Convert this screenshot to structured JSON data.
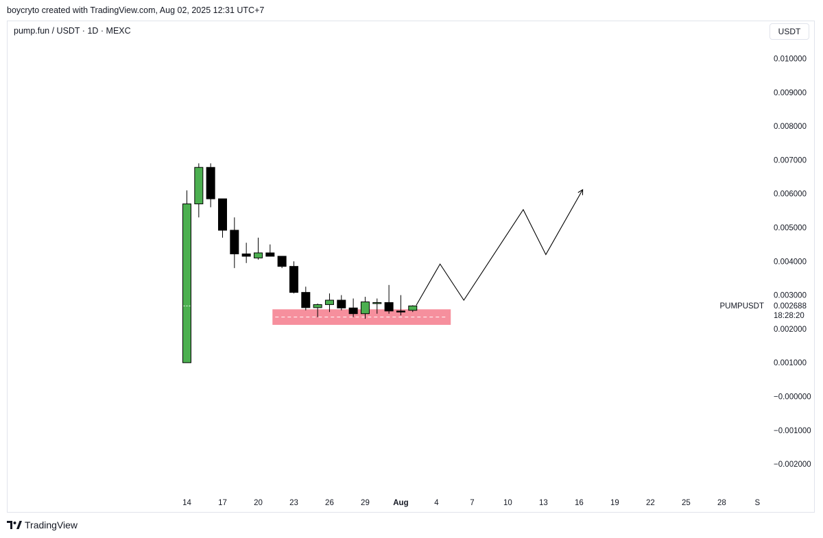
{
  "header": {
    "caption": "boycryto created with TradingView.com, Aug 02, 2025 12:31 UTC+7"
  },
  "symbol": {
    "title": "pump.fun / USDT · 1D · MEXC"
  },
  "currency_button": "USDT",
  "footer": {
    "brand": "TradingView"
  },
  "colors": {
    "up": "#4caf50",
    "down": "#000000",
    "zone": "#f47b8c",
    "axis_text": "#131722"
  },
  "chart_data": {
    "type": "candlestick",
    "ylim": [
      -0.0029,
      0.0111
    ],
    "y_ticks": [
      "0.010000",
      "0.009000",
      "0.008000",
      "0.007000",
      "0.006000",
      "0.005000",
      "0.004000",
      "0.003000",
      "0.002000",
      "0.001000",
      "−0.000000",
      "−0.001000",
      "−0.002000"
    ],
    "y_tick_values": [
      0.01,
      0.009,
      0.008,
      0.007,
      0.006,
      0.005,
      0.004,
      0.003,
      0.002,
      0.001,
      0.0,
      -0.001,
      -0.002
    ],
    "x_tick_labels": [
      {
        "day": 1,
        "label": "14"
      },
      {
        "day": 4,
        "label": "17"
      },
      {
        "day": 7,
        "label": "20"
      },
      {
        "day": 10,
        "label": "23"
      },
      {
        "day": 13,
        "label": "26"
      },
      {
        "day": 16,
        "label": "29"
      },
      {
        "day": 19,
        "label": "Aug",
        "bold": true
      },
      {
        "day": 22,
        "label": "4"
      },
      {
        "day": 25,
        "label": "7"
      },
      {
        "day": 28,
        "label": "10"
      },
      {
        "day": 31,
        "label": "13"
      },
      {
        "day": 34,
        "label": "16"
      },
      {
        "day": 37,
        "label": "19"
      },
      {
        "day": 40,
        "label": "22"
      },
      {
        "day": 43,
        "label": "25"
      },
      {
        "day": 46,
        "label": "28"
      },
      {
        "day": 49,
        "label": "S"
      }
    ],
    "candles": [
      {
        "day": 1,
        "o": 0.001,
        "h": 0.0061,
        "l": 0.001,
        "c": 0.0057
      },
      {
        "day": 2,
        "o": 0.0057,
        "h": 0.0069,
        "l": 0.0053,
        "c": 0.00678
      },
      {
        "day": 3,
        "o": 0.00678,
        "h": 0.0069,
        "l": 0.0056,
        "c": 0.00585
      },
      {
        "day": 4,
        "o": 0.00585,
        "h": 0.00585,
        "l": 0.0047,
        "c": 0.00492
      },
      {
        "day": 5,
        "o": 0.00492,
        "h": 0.0053,
        "l": 0.0038,
        "c": 0.00422
      },
      {
        "day": 6,
        "o": 0.00422,
        "h": 0.00455,
        "l": 0.00395,
        "c": 0.00415
      },
      {
        "day": 7,
        "o": 0.0041,
        "h": 0.0047,
        "l": 0.00405,
        "c": 0.00425
      },
      {
        "day": 8,
        "o": 0.00425,
        "h": 0.0045,
        "l": 0.00415,
        "c": 0.00415
      },
      {
        "day": 9,
        "o": 0.00415,
        "h": 0.00415,
        "l": 0.0038,
        "c": 0.00385
      },
      {
        "day": 10,
        "o": 0.00385,
        "h": 0.004,
        "l": 0.00305,
        "c": 0.00308
      },
      {
        "day": 11,
        "o": 0.00308,
        "h": 0.00325,
        "l": 0.00255,
        "c": 0.00263
      },
      {
        "day": 12,
        "o": 0.00263,
        "h": 0.00275,
        "l": 0.00235,
        "c": 0.00272
      },
      {
        "day": 13,
        "o": 0.00272,
        "h": 0.00305,
        "l": 0.0025,
        "c": 0.00285
      },
      {
        "day": 14,
        "o": 0.00285,
        "h": 0.003,
        "l": 0.00255,
        "c": 0.00262
      },
      {
        "day": 15,
        "o": 0.00262,
        "h": 0.0029,
        "l": 0.00235,
        "c": 0.00245
      },
      {
        "day": 16,
        "o": 0.00245,
        "h": 0.00295,
        "l": 0.0023,
        "c": 0.0028
      },
      {
        "day": 17,
        "o": 0.00278,
        "h": 0.0029,
        "l": 0.00245,
        "c": 0.00278
      },
      {
        "day": 18,
        "o": 0.00278,
        "h": 0.0033,
        "l": 0.00245,
        "c": 0.00253
      },
      {
        "day": 19,
        "o": 0.00253,
        "h": 0.003,
        "l": 0.0024,
        "c": 0.0025
      },
      {
        "day": 20,
        "o": 0.00255,
        "h": 0.0027,
        "l": 0.0025,
        "c": 0.00268
      }
    ],
    "support_zone": {
      "day_from": 8.2,
      "day_to": 23.2,
      "top": 0.00258,
      "bottom": 0.00212,
      "mid": 0.00235
    },
    "projection_path": [
      {
        "day": 20.3,
        "value": 0.0027
      },
      {
        "day": 22.3,
        "value": 0.00392
      },
      {
        "day": 24.3,
        "value": 0.00285
      },
      {
        "day": 29.3,
        "value": 0.00553
      },
      {
        "day": 31.2,
        "value": 0.0042
      },
      {
        "day": 34.3,
        "value": 0.00612
      }
    ],
    "last_price": {
      "symbol": "PUMPUSDT",
      "value": 0.002688,
      "value_label": "0.002688",
      "countdown": "18:28:20"
    }
  }
}
